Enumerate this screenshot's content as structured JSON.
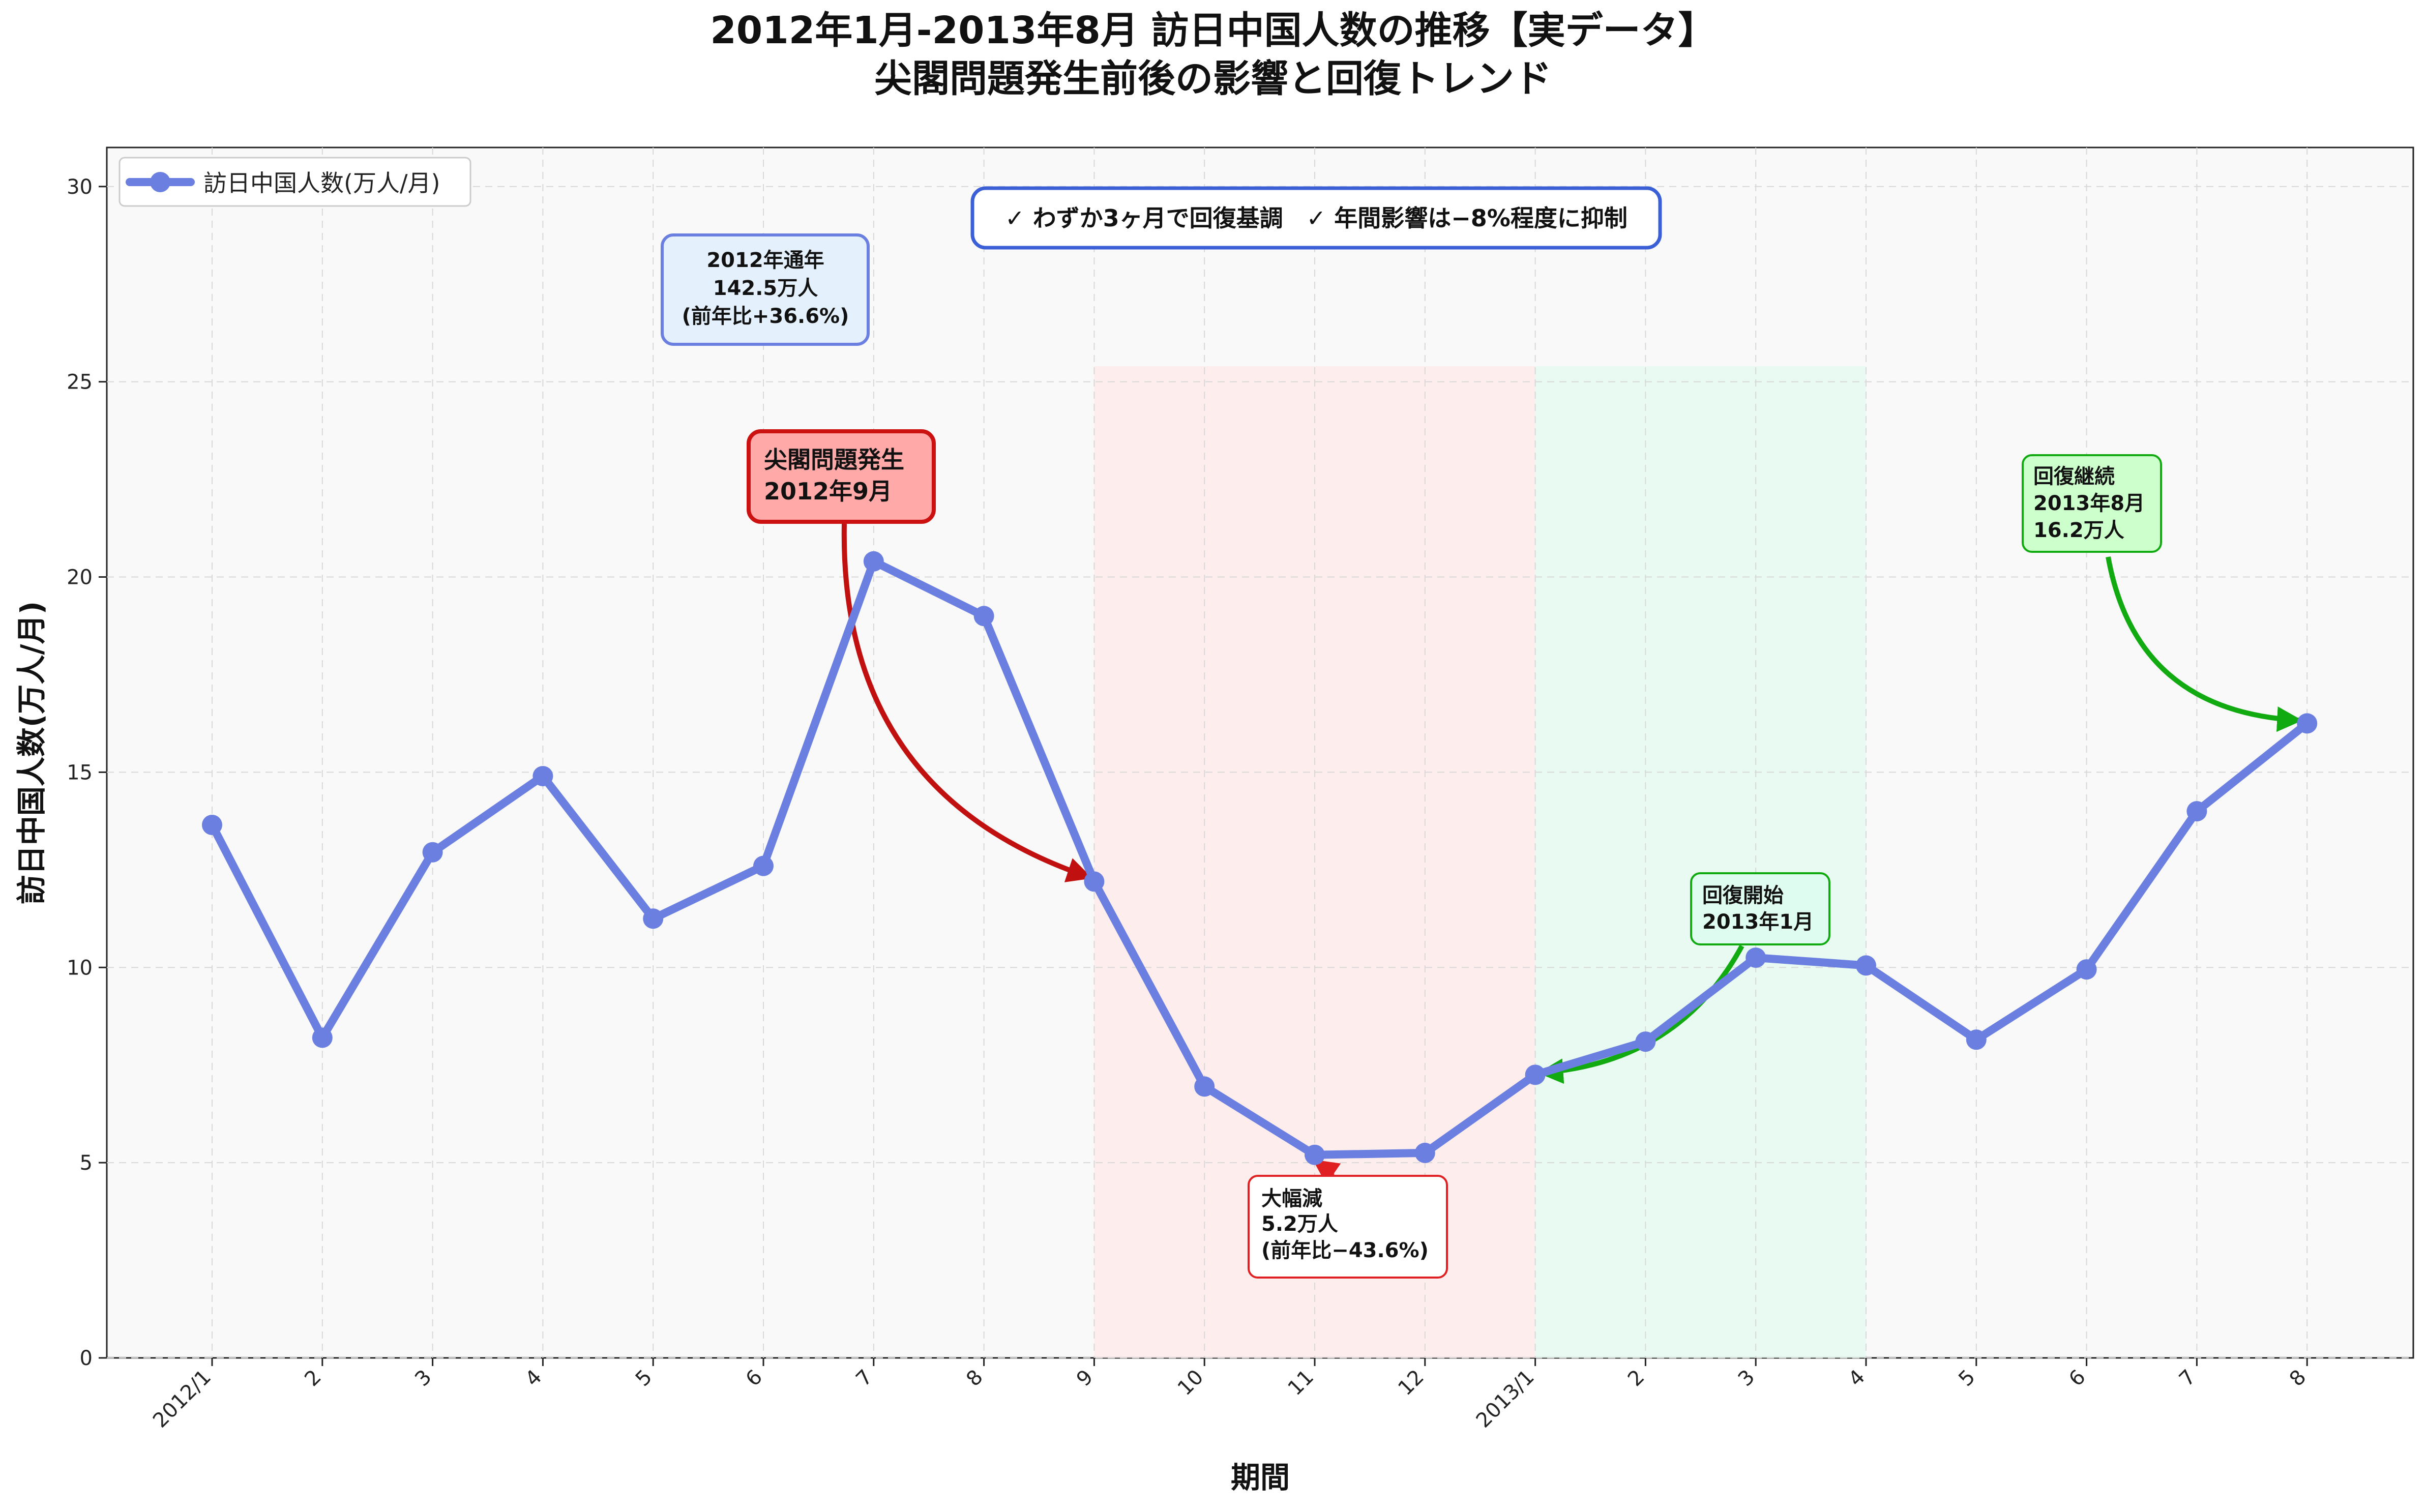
{
  "chart_data": {
    "type": "line",
    "title_line1": "2012年1月-2013年8月 訪日中国人数の推移【実データ】",
    "title_line2": "尖閣問題発生前後の影響と回復トレンド",
    "xlabel": "期間",
    "ylabel": "訪日中国人数(万人/月)",
    "ylim": [
      0,
      31
    ],
    "yticks": [
      0,
      5,
      10,
      15,
      20,
      25,
      30
    ],
    "grid": true,
    "legend_position": "top-left",
    "categories": [
      "2012/1",
      "2",
      "3",
      "4",
      "5",
      "6",
      "7",
      "8",
      "9",
      "10",
      "11",
      "12",
      "2013/1",
      "2",
      "3",
      "4",
      "5",
      "6",
      "7",
      "8"
    ],
    "series": [
      {
        "name": "訪日中国人数(万人/月)",
        "color": "#6a7fe0",
        "values": [
          13.65,
          8.2,
          12.95,
          14.9,
          11.25,
          12.6,
          20.4,
          19.0,
          12.2,
          6.95,
          5.2,
          5.25,
          7.25,
          8.1,
          10.25,
          10.05,
          8.15,
          9.95,
          14.0,
          16.25
        ]
      }
    ],
    "shaded_regions": [
      {
        "from_index": 8,
        "to_index": 12,
        "y_top": 25.4,
        "color": "#fde8e8"
      },
      {
        "from_index": 12,
        "to_index": 15,
        "y_top": 25.4,
        "color": "#e3f9ef"
      }
    ],
    "annotations": {
      "top_box": {
        "text": "✓ わずか3ヶ月で回復基調　✓ 年間影響は−8%程度に抑制",
        "border": "#3b5fd6",
        "fill": "#ffffff"
      },
      "year_box": {
        "lines": [
          "2012年通年",
          "142.5万人",
          "(前年比+36.6%)"
        ],
        "border": "#6a7fe0",
        "fill": "#e4f0fb"
      },
      "senkaku": {
        "lines": [
          "尖閣問題発生",
          "2012年9月"
        ],
        "border": "#cc1111",
        "fill": "#ffa9a9",
        "arrow_color": "#c01010",
        "target_index": 8
      },
      "drop": {
        "lines": [
          "大幅減",
          "5.2万人",
          "(前年比−43.6%)"
        ],
        "border": "#e02020",
        "fill": "#ffffff",
        "arrow_color": "#e02020",
        "target_index": 10
      },
      "recovery_start": {
        "lines": [
          "回復開始",
          "2013年1月"
        ],
        "border": "#11aa11",
        "fill": "#dffcf0",
        "arrow_color": "#11aa11",
        "target_index": 12
      },
      "recovery_cont": {
        "lines": [
          "回復継続",
          "2013年8月",
          "16.2万人"
        ],
        "border": "#11aa11",
        "fill": "#ccffcc",
        "arrow_color": "#11aa11",
        "target_index": 19
      }
    }
  }
}
